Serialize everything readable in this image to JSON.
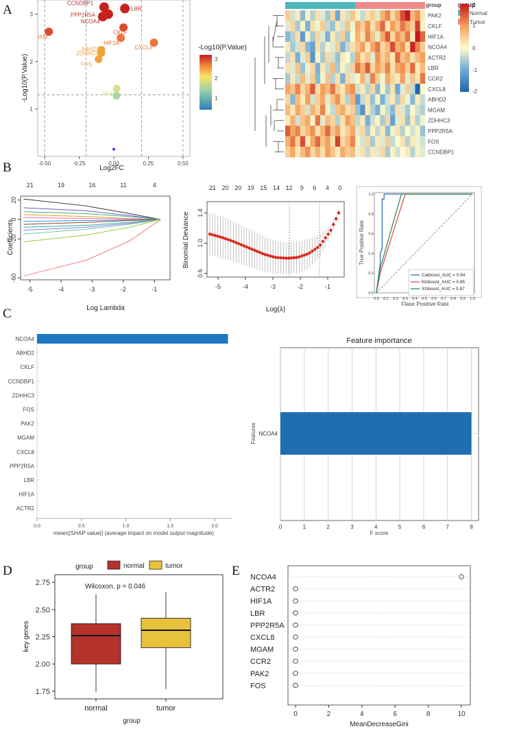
{
  "figure": {
    "panel_letters": [
      "A",
      "B",
      "C",
      "D",
      "E"
    ]
  },
  "chart_data": [
    {
      "id": "volcano",
      "type": "scatter",
      "xlabel": "Log2FC",
      "ylabel": "-Log10(P.Value)",
      "xlim": [
        -0.55,
        0.55
      ],
      "ylim": [
        0,
        3.3
      ],
      "xticks": [
        "-0.50",
        "-0.25",
        "0.00",
        "0.25",
        "0.50"
      ],
      "yticks": [
        "1",
        "2",
        "3"
      ],
      "colorbar": {
        "title": "-Log10(P.Value)",
        "ticks": [
          "1",
          "2",
          "3"
        ]
      },
      "points": [
        {
          "label": "CCNDBP1",
          "x": -0.07,
          "y": 3.15
        },
        {
          "label": "PPP2R5A",
          "x": -0.04,
          "y": 3.0
        },
        {
          "label": "NCOA4",
          "x": -0.08,
          "y": 2.95
        },
        {
          "label": "LBR",
          "x": 0.08,
          "y": 3.12
        },
        {
          "label": "IAM",
          "x": -0.47,
          "y": 2.63
        },
        {
          "label": "CKLF",
          "x": 0.07,
          "y": 2.72
        },
        {
          "label": "HIF1A",
          "x": 0.05,
          "y": 2.5
        },
        {
          "label": "CXCL8",
          "x": 0.29,
          "y": 2.4
        },
        {
          "label": "ABHD2",
          "x": -0.09,
          "y": 2.25
        },
        {
          "label": "ZDHHC3",
          "x": -0.09,
          "y": 2.18
        },
        {
          "label": "FOS",
          "x": -0.11,
          "y": 2.05
        },
        {
          "label": "PAK2",
          "x": 0.02,
          "y": 1.43
        },
        {
          "label": "",
          "x": 0.02,
          "y": 1.28
        },
        {
          "label": "",
          "x": 0.0,
          "y": 0.15
        }
      ]
    },
    {
      "id": "heatmap",
      "type": "heatmap",
      "rows": [
        "PAK2",
        "CKLF",
        "HIF1A",
        "NCOA4",
        "ACTR2",
        "LBR",
        "CCR2",
        "CXCL8",
        "ABHD2",
        "MGAM",
        "ZDHHC3",
        "PPP2R5A",
        "FOS",
        "CCNDBP1"
      ],
      "group_label": "group",
      "groups": [
        "Normal",
        "Tumor"
      ],
      "group_colors": [
        "#4fb6bd",
        "#ee8a8a"
      ],
      "colorbar_ticks": [
        "2",
        "1",
        "0",
        "-1",
        "-2"
      ],
      "values": [
        [
          0.5,
          -0.3,
          0.2,
          -0.8,
          0.1,
          -0.5,
          0.3,
          -0.2,
          -0.6,
          0.4,
          -1.0,
          0.2,
          -0.3,
          0.6,
          0.1,
          -0.4,
          0.3,
          0.5,
          -0.2,
          0.8,
          1.2,
          0.4,
          0.9,
          1.6,
          2.0,
          0.7,
          1.1,
          0.2
        ],
        [
          -0.2,
          0.4,
          -0.6,
          0.1,
          -0.9,
          0.3,
          -0.1,
          0.5,
          -0.4,
          -0.7,
          0.2,
          -0.3,
          0.6,
          -0.1,
          0.9,
          0.5,
          1.1,
          0.3,
          0.8,
          1.4,
          0.2,
          1.0,
          0.6,
          1.3,
          0.9,
          0.5,
          1.7,
          0.1
        ],
        [
          -0.8,
          -0.5,
          0.3,
          -1.2,
          0.1,
          -0.6,
          0.4,
          -0.2,
          -0.9,
          0.2,
          -0.4,
          0.5,
          -0.7,
          0.0,
          0.8,
          0.3,
          1.2,
          0.6,
          -0.2,
          0.9,
          1.5,
          0.4,
          1.1,
          0.7,
          1.3,
          0.2,
          2.2,
          1.4
        ],
        [
          0.2,
          -0.6,
          -0.3,
          0.4,
          -0.8,
          -1.1,
          0.3,
          -0.5,
          0.1,
          -0.2,
          0.5,
          -0.9,
          -0.4,
          0.3,
          0.6,
          1.0,
          0.2,
          0.9,
          1.3,
          0.4,
          0.7,
          1.6,
          0.8,
          1.1,
          0.3,
          1.9,
          1.2,
          0.5
        ],
        [
          -0.4,
          0.3,
          -0.9,
          -0.2,
          0.5,
          -1.3,
          0.1,
          -0.6,
          0.4,
          -0.3,
          -0.7,
          0.2,
          0.0,
          -0.5,
          0.9,
          0.3,
          0.6,
          -0.2,
          1.1,
          0.5,
          0.8,
          0.2,
          1.4,
          0.6,
          0.9,
          0.3,
          0.7,
          1.0
        ],
        [
          0.3,
          -0.2,
          0.6,
          -0.7,
          -0.1,
          0.4,
          -0.9,
          0.2,
          -0.4,
          0.7,
          -0.6,
          0.1,
          -0.3,
          0.5,
          1.3,
          0.8,
          1.5,
          0.4,
          1.0,
          0.6,
          1.2,
          0.3,
          0.9,
          1.1,
          0.5,
          1.4,
          0.2,
          0.7
        ],
        [
          -0.6,
          0.2,
          -0.4,
          0.7,
          -0.2,
          0.5,
          -0.8,
          -0.1,
          0.6,
          -0.5,
          0.3,
          -0.9,
          0.4,
          -0.2,
          0.1,
          0.8,
          -0.3,
          1.2,
          0.5,
          -0.1,
          0.9,
          0.4,
          0.2,
          1.0,
          -0.2,
          0.6,
          0.3,
          1.3
        ],
        [
          0.9,
          0.6,
          1.2,
          0.4,
          0.8,
          1.5,
          0.3,
          1.0,
          0.7,
          1.3,
          0.5,
          0.2,
          0.9,
          1.1,
          -0.3,
          0.2,
          -0.5,
          0.4,
          -0.8,
          0.1,
          -0.6,
          0.3,
          -1.0,
          -0.2,
          0.5,
          -0.4,
          -2.0,
          0.0
        ],
        [
          0.4,
          -0.8,
          0.7,
          0.2,
          1.0,
          -0.3,
          0.5,
          0.9,
          -0.2,
          0.6,
          1.1,
          0.3,
          -0.5,
          0.8,
          -1.2,
          -0.4,
          0.3,
          -0.7,
          0.1,
          -0.9,
          -0.3,
          0.2,
          -0.6,
          0.4,
          -0.1,
          -0.8,
          0.2,
          -0.4
        ],
        [
          0.7,
          0.2,
          0.9,
          0.5,
          -0.3,
          0.8,
          0.4,
          1.2,
          0.1,
          -0.4,
          0.6,
          0.9,
          0.3,
          0.5,
          -0.7,
          -1.3,
          0.2,
          -0.5,
          -0.9,
          0.1,
          -0.4,
          -0.8,
          0.3,
          -0.2,
          -0.6,
          0.0,
          -0.3,
          -0.5
        ],
        [
          0.2,
          0.8,
          -0.3,
          0.6,
          0.9,
          0.1,
          1.3,
          -0.2,
          0.7,
          0.4,
          -0.5,
          0.3,
          1.0,
          0.6,
          -0.4,
          0.2,
          -0.9,
          -0.3,
          0.1,
          -0.6,
          0.4,
          -1.1,
          -0.2,
          0.3,
          -0.7,
          0.2,
          -0.5,
          -0.1
        ],
        [
          1.5,
          0.9,
          1.2,
          0.4,
          0.7,
          1.1,
          0.3,
          0.8,
          1.4,
          0.6,
          1.0,
          0.2,
          0.5,
          0.9,
          -0.2,
          0.4,
          -0.6,
          0.1,
          -0.4,
          0.2,
          -0.8,
          -0.1,
          0.3,
          -0.5,
          0.0,
          -0.3,
          0.1,
          -0.7
        ],
        [
          0.8,
          1.3,
          0.5,
          1.6,
          0.2,
          0.9,
          1.4,
          0.6,
          1.0,
          0.3,
          1.7,
          0.4,
          0.7,
          1.2,
          0.1,
          -0.3,
          0.4,
          -0.6,
          0.2,
          -0.2,
          0.5,
          -0.4,
          0.0,
          0.3,
          -0.5,
          0.2,
          -0.1,
          -0.3
        ],
        [
          0.5,
          0.9,
          0.2,
          0.7,
          1.1,
          0.4,
          0.8,
          0.3,
          1.0,
          0.6,
          0.2,
          0.9,
          0.5,
          0.7,
          -0.1,
          0.3,
          -0.4,
          0.2,
          -0.2,
          0.4,
          -0.6,
          0.1,
          -0.3,
          0.0,
          0.2,
          -0.5,
          0.1,
          -0.2
        ]
      ]
    },
    {
      "id": "lasso-coef",
      "type": "line",
      "xlabel": "Log Lambda",
      "ylabel": "Coefficients",
      "xlim": [
        -5.3,
        -0.5
      ],
      "ylim": [
        -62,
        24
      ],
      "xticks": [
        "-5",
        "-4",
        "-3",
        "-2",
        "-1"
      ],
      "yticks": [
        "20",
        "0",
        "-20",
        "-60"
      ],
      "top_ticks": [
        "21",
        "19",
        "16",
        "11",
        "4"
      ],
      "series": [
        {
          "name": "s1",
          "color": "#333333",
          "x": [
            -5.2,
            -3.2,
            -1.8,
            -0.8
          ],
          "y": [
            21,
            14,
            6,
            0
          ]
        },
        {
          "name": "s2",
          "color": "#6a5acd",
          "x": [
            -5.2,
            -3.2,
            -1.8,
            -0.8
          ],
          "y": [
            12,
            9,
            4,
            0
          ]
        },
        {
          "name": "s3",
          "color": "#3cb371",
          "x": [
            -5.2,
            -3.2,
            -1.8,
            -0.8
          ],
          "y": [
            8,
            6,
            3,
            0
          ]
        },
        {
          "name": "s4",
          "color": "#daa520",
          "x": [
            -5.2,
            -3.2,
            -1.8,
            -0.8
          ],
          "y": [
            5,
            3,
            1,
            0
          ]
        },
        {
          "name": "s5",
          "color": "#ff69b4",
          "x": [
            -5.2,
            -3.2,
            -1.8,
            -0.8
          ],
          "y": [
            2,
            1,
            0.5,
            0
          ]
        },
        {
          "name": "s6",
          "color": "#1e90ff",
          "x": [
            -5.2,
            -3.2,
            -1.8,
            -0.8
          ],
          "y": [
            -2,
            -1,
            -0.5,
            0
          ]
        },
        {
          "name": "s7",
          "color": "#8b4513",
          "x": [
            -5.2,
            -3.2,
            -1.8,
            -0.8
          ],
          "y": [
            -5,
            -3,
            -1,
            0
          ]
        },
        {
          "name": "s8",
          "color": "#20b2aa",
          "x": [
            -5.2,
            -3.2,
            -1.8,
            -0.8
          ],
          "y": [
            -8,
            -6,
            -3,
            0
          ]
        },
        {
          "name": "s9",
          "color": "#9370db",
          "x": [
            -5.2,
            -3.2,
            -1.8,
            -0.8
          ],
          "y": [
            -11,
            -8,
            -4,
            0
          ]
        },
        {
          "name": "s10",
          "color": "#66cdaa",
          "x": [
            -5.2,
            -3.2,
            -1.8,
            -0.8
          ],
          "y": [
            -15,
            -10,
            -5,
            0
          ]
        },
        {
          "name": "s11",
          "color": "#9acd32",
          "x": [
            -5.2,
            -3.2,
            -1.8,
            -0.8
          ],
          "y": [
            -23,
            -16,
            -8,
            0
          ]
        },
        {
          "name": "s12",
          "color": "#f08080",
          "x": [
            -5.2,
            -3.2,
            -1.8,
            -0.8
          ],
          "y": [
            -58,
            -42,
            -22,
            0
          ]
        }
      ]
    },
    {
      "id": "lasso-cv",
      "type": "line",
      "xlabel": "Log(λ)",
      "ylabel": "Binomial Deviance",
      "xlim": [
        -5.4,
        -0.4
      ],
      "ylim": [
        0.55,
        1.55
      ],
      "xticks": [
        "-5",
        "-4",
        "-3",
        "-2",
        "-1"
      ],
      "yticks": [
        "1.4",
        "1.0",
        "0.6"
      ],
      "top_ticks": [
        "21",
        "20",
        "20",
        "19",
        "15",
        "14",
        "12",
        "9",
        "6",
        "4",
        "0"
      ],
      "vlines": [
        -2.4,
        -1.3
      ],
      "x": [
        -5.3,
        -4.9,
        -4.5,
        -4.1,
        -3.7,
        -3.3,
        -2.9,
        -2.5,
        -2.1,
        -1.7,
        -1.3,
        -0.9,
        -0.6
      ],
      "y": [
        1.12,
        1.08,
        1.03,
        0.97,
        0.91,
        0.85,
        0.81,
        0.8,
        0.81,
        0.86,
        0.96,
        1.16,
        1.4
      ],
      "err": [
        0.28,
        0.28,
        0.27,
        0.26,
        0.25,
        0.23,
        0.22,
        0.21,
        0.21,
        0.2,
        0.15,
        0.08,
        0.04
      ]
    },
    {
      "id": "roc",
      "type": "line",
      "xlabel": "Flase  Positive Rate",
      "ylabel": "True  Positive Rate",
      "xlim": [
        0,
        1
      ],
      "ylim": [
        0,
        1
      ],
      "xticks": [
        "0.0",
        "0.1",
        "0.2",
        "0.3",
        "0.4",
        "0.5",
        "0.6",
        "0.7",
        "0.8",
        "0.9",
        "1.0"
      ],
      "yticks": [
        "0.0",
        "0.2",
        "0.4",
        "0.6",
        "0.8",
        "1.0"
      ],
      "series": [
        {
          "name": "Catboost_AUC = 0.94",
          "color": "#2a6fb5",
          "x": [
            0,
            0.04,
            0.04,
            0.06,
            0.06,
            0.08,
            0.08,
            1
          ],
          "y": [
            0,
            0.3,
            0.4,
            0.45,
            0.95,
            0.95,
            1,
            1
          ]
        },
        {
          "name": "NGboost_AUC = 0.85",
          "color": "#d9534f",
          "x": [
            0,
            0.04,
            0.3,
            1
          ],
          "y": [
            0,
            0.2,
            1,
            1
          ]
        },
        {
          "name": "XGboost_AUC = 0.87",
          "color": "#2e8b57",
          "x": [
            0,
            0.04,
            0.26,
            1
          ],
          "y": [
            0,
            0.25,
            1,
            1
          ]
        }
      ]
    },
    {
      "id": "shap",
      "type": "bar",
      "categories": [
        "NCOA4",
        "ABHD2",
        "CKLF",
        "CCNDBP1",
        "ZDHHC3",
        "FOS",
        "PAK2",
        "MGAM",
        "CXCL8",
        "PPP2R5A",
        "LBR",
        "HIF1A",
        "ACTR2"
      ],
      "values": [
        2.15,
        0,
        0,
        0,
        0,
        0,
        0,
        0,
        0,
        0,
        0,
        0,
        0
      ],
      "xlabel": "mean(|SHAP value|) (average impact on model output magnitude)",
      "xlim": [
        0,
        2.2
      ],
      "xticks": [
        "0.0",
        "0.5",
        "1.0",
        "1.5",
        "2.0"
      ]
    },
    {
      "id": "feature-importance",
      "type": "bar",
      "title": "Feature importance",
      "categories": [
        "NCOA4"
      ],
      "values": [
        8
      ],
      "xlabel": "F score",
      "ylabel": "Features",
      "xlim": [
        0,
        8.3
      ],
      "xticks": [
        "0",
        "1",
        "2",
        "3",
        "4",
        "5",
        "6",
        "7",
        "8"
      ]
    },
    {
      "id": "boxplot",
      "type": "bar",
      "xlabel": "group",
      "ylabel": "key genes",
      "legend_title": "group",
      "categories": [
        "normal",
        "tumor"
      ],
      "colors": [
        "#b5332b",
        "#e8c23d"
      ],
      "ylim": [
        1.68,
        2.82
      ],
      "yticks": [
        "2.75",
        "2.50",
        "2.25",
        "2.00",
        "1.75"
      ],
      "stat_text": "Wilcoxon, p = 0.046",
      "boxes": [
        {
          "name": "normal",
          "min": 1.74,
          "q1": 2.0,
          "median": 2.26,
          "q3": 2.37,
          "max": 2.64
        },
        {
          "name": "tumor",
          "min": 1.77,
          "q1": 2.15,
          "median": 2.31,
          "q3": 2.42,
          "max": 2.66
        }
      ]
    },
    {
      "id": "gini",
      "type": "scatter",
      "xlabel": "MeanDecreaseGini",
      "categories": [
        "NCOA4",
        "ACTR2",
        "HIF1A",
        "LBR",
        "PPP2R5A",
        "CXCL8",
        "MGAM",
        "CCR2",
        "PAK2",
        "FOS"
      ],
      "values": [
        10,
        0,
        0,
        0,
        0,
        0,
        0,
        0,
        0,
        0
      ],
      "xlim": [
        -0.5,
        10.5
      ],
      "xticks": [
        "0",
        "2",
        "4",
        "6",
        "8",
        "10"
      ]
    }
  ]
}
